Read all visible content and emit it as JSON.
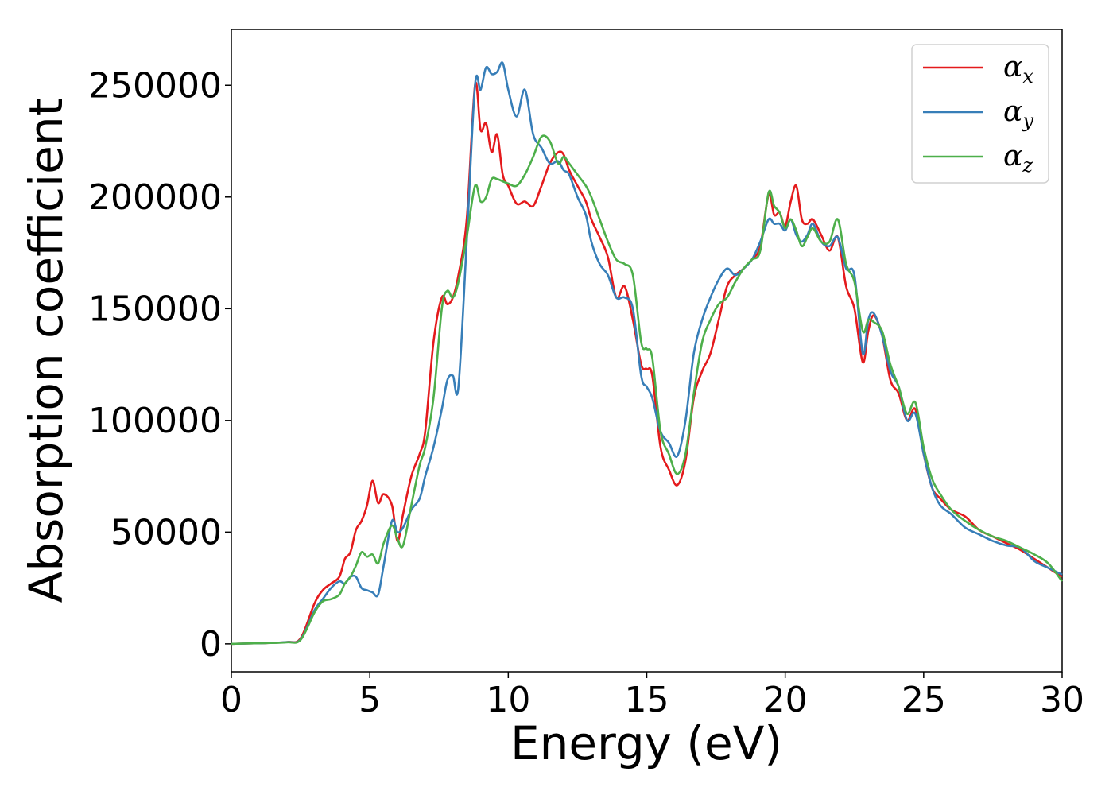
{
  "chart_data": {
    "type": "line",
    "title": "",
    "xlabel": "Energy (eV)",
    "ylabel": "Absorption coefficient",
    "xlim": [
      0,
      30
    ],
    "ylim": [
      -12500,
      275000
    ],
    "xticks": [
      0,
      5,
      10,
      15,
      20,
      25,
      30
    ],
    "yticks": [
      0,
      50000,
      100000,
      150000,
      200000,
      250000
    ],
    "xtick_labels": [
      "0",
      "5",
      "10",
      "15",
      "20",
      "25",
      "30"
    ],
    "ytick_labels": [
      "0",
      "50000",
      "100000",
      "150000",
      "200000",
      "250000"
    ],
    "grid": false,
    "legend_position": "top-right",
    "series": [
      {
        "name": "αx",
        "symbol": "α",
        "subscript": "x",
        "color": "#e41a1c",
        "x": [
          0,
          1,
          2,
          2.5,
          3,
          3.3,
          3.6,
          3.9,
          4.1,
          4.3,
          4.5,
          4.7,
          4.9,
          5.1,
          5.3,
          5.5,
          5.8,
          6.0,
          6.2,
          6.5,
          6.8,
          7.0,
          7.3,
          7.6,
          7.8,
          8.0,
          8.2,
          8.5,
          8.8,
          9.0,
          9.2,
          9.4,
          9.6,
          9.8,
          10.0,
          10.3,
          10.6,
          10.9,
          11.2,
          11.5,
          11.8,
          12.0,
          12.2,
          12.5,
          12.8,
          13.0,
          13.3,
          13.6,
          13.9,
          14.2,
          14.5,
          14.8,
          15.0,
          15.2,
          15.5,
          15.8,
          16.1,
          16.4,
          16.7,
          17.0,
          17.3,
          17.6,
          17.9,
          18.2,
          18.5,
          18.8,
          19.1,
          19.4,
          19.6,
          19.8,
          20.0,
          20.2,
          20.4,
          20.6,
          20.8,
          21.0,
          21.3,
          21.6,
          21.9,
          22.2,
          22.5,
          22.8,
          23.0,
          23.2,
          23.5,
          23.8,
          24.1,
          24.4,
          24.7,
          25.0,
          25.3,
          25.6,
          26.0,
          26.5,
          27.0,
          27.5,
          28.0,
          28.5,
          29.0,
          29.5,
          30.0
        ],
        "y": [
          0,
          300,
          800,
          2500,
          18000,
          24000,
          27000,
          30000,
          38000,
          41000,
          51000,
          55000,
          62000,
          73000,
          63000,
          67000,
          62000,
          46000,
          58000,
          75000,
          85000,
          95000,
          135000,
          155000,
          152000,
          155000,
          165000,
          190000,
          250000,
          230000,
          233000,
          220000,
          228000,
          210000,
          205000,
          197000,
          198000,
          196000,
          205000,
          215000,
          220000,
          219000,
          212000,
          205000,
          198000,
          190000,
          182000,
          173000,
          155000,
          160000,
          145000,
          125000,
          123000,
          120000,
          88000,
          78000,
          71000,
          82000,
          110000,
          122000,
          130000,
          145000,
          160000,
          165000,
          168000,
          172000,
          178000,
          201000,
          192000,
          193000,
          187000,
          198000,
          205000,
          190000,
          188000,
          190000,
          183000,
          176000,
          182000,
          160000,
          150000,
          126000,
          140000,
          147000,
          138000,
          118000,
          112000,
          100000,
          105000,
          85000,
          70000,
          65000,
          60000,
          57000,
          51000,
          48000,
          45000,
          42000,
          38000,
          34000,
          30000
        ]
      },
      {
        "name": "αy",
        "symbol": "α",
        "subscript": "y",
        "color": "#377eb8",
        "x": [
          0,
          1,
          2,
          2.5,
          3,
          3.3,
          3.6,
          3.9,
          4.1,
          4.3,
          4.5,
          4.7,
          4.9,
          5.1,
          5.3,
          5.5,
          5.8,
          6.0,
          6.2,
          6.5,
          6.8,
          7.0,
          7.3,
          7.6,
          7.8,
          8.0,
          8.2,
          8.5,
          8.8,
          9.0,
          9.2,
          9.4,
          9.6,
          9.8,
          10.0,
          10.3,
          10.6,
          10.9,
          11.2,
          11.5,
          11.8,
          12.0,
          12.2,
          12.5,
          12.8,
          13.0,
          13.3,
          13.6,
          13.9,
          14.2,
          14.5,
          14.8,
          15.0,
          15.2,
          15.5,
          15.8,
          16.1,
          16.4,
          16.7,
          17.0,
          17.3,
          17.6,
          17.9,
          18.2,
          18.5,
          18.8,
          19.1,
          19.4,
          19.6,
          19.8,
          20.0,
          20.2,
          20.4,
          20.6,
          20.8,
          21.0,
          21.3,
          21.6,
          21.9,
          22.2,
          22.5,
          22.8,
          23.0,
          23.2,
          23.5,
          23.8,
          24.1,
          24.4,
          24.7,
          25.0,
          25.3,
          25.6,
          26.0,
          26.5,
          27.0,
          27.5,
          28.0,
          28.5,
          29.0,
          29.5,
          30.0
        ],
        "y": [
          0,
          300,
          800,
          2000,
          15000,
          20000,
          25000,
          28000,
          27000,
          30000,
          30000,
          25000,
          24000,
          23000,
          22000,
          35000,
          55000,
          50000,
          52000,
          60000,
          65000,
          75000,
          88000,
          105000,
          118000,
          120000,
          115000,
          180000,
          250000,
          248000,
          258000,
          255000,
          256000,
          260000,
          248000,
          236000,
          248000,
          228000,
          222000,
          215000,
          216000,
          212000,
          210000,
          200000,
          192000,
          180000,
          170000,
          165000,
          155000,
          155000,
          150000,
          120000,
          115000,
          110000,
          95000,
          90000,
          84000,
          100000,
          130000,
          145000,
          155000,
          163000,
          168000,
          165000,
          168000,
          172000,
          180000,
          190000,
          188000,
          188000,
          185000,
          190000,
          183000,
          180000,
          183000,
          188000,
          180000,
          178000,
          182000,
          168000,
          165000,
          130000,
          145000,
          148000,
          138000,
          122000,
          115000,
          100000,
          103000,
          85000,
          70000,
          62000,
          58000,
          52000,
          49000,
          46000,
          44000,
          43000,
          37000,
          34000,
          31000
        ]
      },
      {
        "name": "αz",
        "symbol": "α",
        "subscript": "z",
        "color": "#4daf4a",
        "x": [
          0,
          1,
          2,
          2.5,
          3,
          3.3,
          3.6,
          3.9,
          4.1,
          4.3,
          4.5,
          4.7,
          4.9,
          5.1,
          5.3,
          5.5,
          5.8,
          6.0,
          6.2,
          6.5,
          6.8,
          7.0,
          7.3,
          7.6,
          7.8,
          8.0,
          8.2,
          8.5,
          8.8,
          9.0,
          9.2,
          9.4,
          9.6,
          9.8,
          10.0,
          10.3,
          10.6,
          10.9,
          11.2,
          11.5,
          11.8,
          12.0,
          12.2,
          12.5,
          12.8,
          13.0,
          13.3,
          13.6,
          13.9,
          14.2,
          14.5,
          14.8,
          15.0,
          15.2,
          15.5,
          15.8,
          16.1,
          16.4,
          16.7,
          17.0,
          17.3,
          17.6,
          17.9,
          18.2,
          18.5,
          18.8,
          19.1,
          19.4,
          19.6,
          19.8,
          20.0,
          20.2,
          20.4,
          20.6,
          20.8,
          21.0,
          21.3,
          21.6,
          21.9,
          22.2,
          22.5,
          22.8,
          23.0,
          23.2,
          23.5,
          23.8,
          24.1,
          24.4,
          24.7,
          25.0,
          25.3,
          25.6,
          26.0,
          26.5,
          27.0,
          27.5,
          28.0,
          28.5,
          29.0,
          29.5,
          30.0
        ],
        "y": [
          0,
          300,
          700,
          1800,
          14000,
          19000,
          20000,
          22000,
          27000,
          30000,
          35000,
          41000,
          39000,
          40000,
          36000,
          45000,
          53000,
          47000,
          44000,
          62000,
          80000,
          88000,
          110000,
          150000,
          158000,
          155000,
          162000,
          182000,
          205000,
          198000,
          200000,
          208000,
          208000,
          207000,
          206000,
          205000,
          210000,
          218000,
          227000,
          225000,
          215000,
          218000,
          215000,
          210000,
          205000,
          200000,
          190000,
          180000,
          172000,
          170000,
          165000,
          135000,
          132000,
          128000,
          95000,
          85000,
          76000,
          85000,
          112000,
          135000,
          145000,
          152000,
          155000,
          162000,
          168000,
          172000,
          176000,
          202000,
          196000,
          193000,
          186000,
          190000,
          185000,
          178000,
          182000,
          186000,
          180000,
          180000,
          190000,
          170000,
          162000,
          140000,
          145000,
          144000,
          140000,
          125000,
          115000,
          103000,
          108000,
          88000,
          74000,
          67000,
          60000,
          55000,
          51000,
          48000,
          46000,
          43000,
          40000,
          36000,
          28000
        ]
      }
    ]
  }
}
